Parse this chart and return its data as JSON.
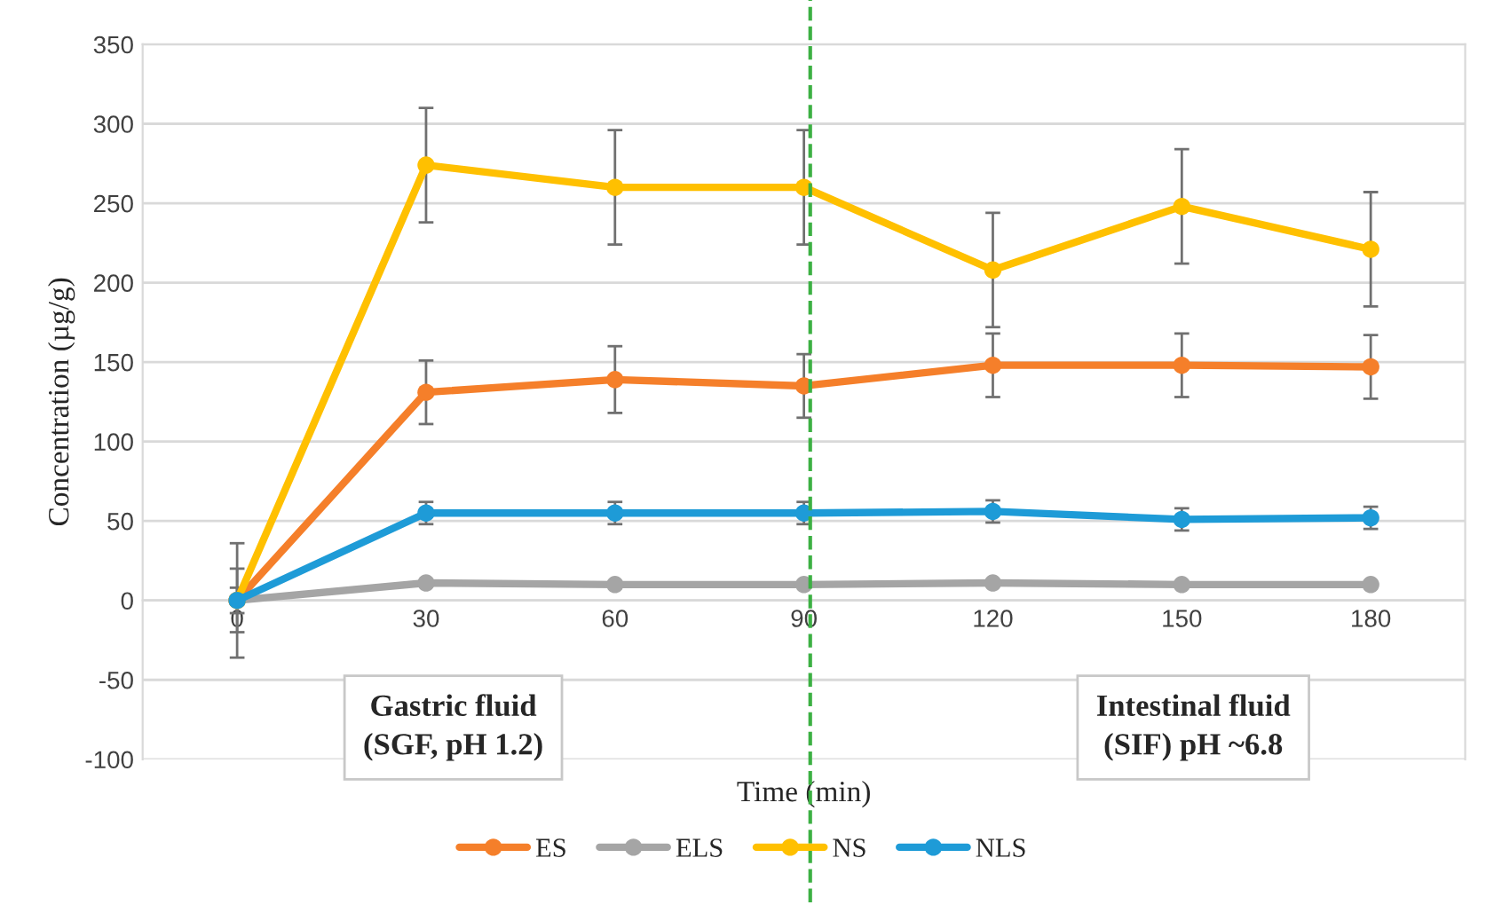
{
  "chart_data": {
    "type": "line",
    "xlabel": "Time (min)",
    "ylabel": "Concentration (µg/g)",
    "x": [
      0,
      30,
      60,
      90,
      120,
      150,
      180
    ],
    "xlim": [
      -15,
      195
    ],
    "xticks": [
      0,
      30,
      60,
      90,
      120,
      150,
      180
    ],
    "ylim": [
      -100,
      350
    ],
    "yticks": [
      -100,
      -50,
      0,
      50,
      100,
      150,
      200,
      250,
      300,
      350
    ],
    "series": [
      {
        "name": "ES",
        "color": "#f57f2a",
        "values": [
          0,
          131,
          139,
          135,
          148,
          148,
          147
        ],
        "errors": [
          20,
          20,
          21,
          20,
          20,
          20,
          20
        ]
      },
      {
        "name": "ELS",
        "color": "#a5a5a5",
        "values": [
          0,
          11,
          10,
          10,
          11,
          10,
          10
        ]
      },
      {
        "name": "NS",
        "color": "#ffc000",
        "values": [
          0,
          274,
          260,
          260,
          208,
          248,
          221
        ],
        "errors": [
          36,
          36,
          36,
          36,
          36,
          36,
          36
        ]
      },
      {
        "name": "NLS",
        "color": "#1e9bd7",
        "values": [
          0,
          55,
          55,
          55,
          56,
          51,
          52
        ],
        "errors": [
          8,
          7,
          7,
          7,
          7,
          7,
          7
        ]
      }
    ],
    "ref_lines": [
      {
        "axis": "x",
        "value": 91,
        "color": "#3cb043",
        "line_style": "dashed"
      }
    ],
    "annotations": [
      "Gastric fluid\n(SGF, pH 1.2)",
      "Intestinal fluid\n(SIF) pH ~6.8"
    ],
    "grid": "y",
    "legend": "bottom",
    "marker": "circle",
    "line_style": "solid"
  }
}
